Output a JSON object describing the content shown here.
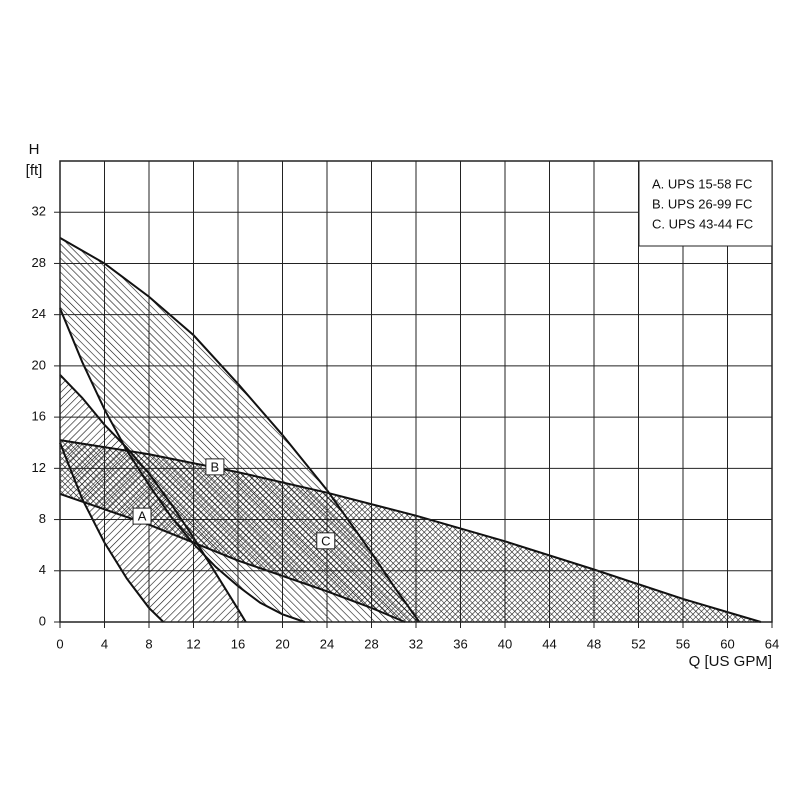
{
  "chart_data": {
    "type": "band",
    "y_label": [
      "H",
      "[ft]"
    ],
    "x_label": "Q [US GPM]",
    "xlim": [
      0,
      64
    ],
    "xticks": [
      0,
      4,
      8,
      12,
      16,
      20,
      24,
      28,
      32,
      36,
      40,
      44,
      48,
      52,
      56,
      60,
      64
    ],
    "ylim": [
      0,
      36
    ],
    "yticks": [
      0,
      4,
      8,
      12,
      16,
      20,
      24,
      28,
      32
    ],
    "grid": true,
    "legend": "upper right",
    "series": [
      {
        "name": "A. UPS 15-58 FC",
        "label": "A",
        "color": "#111111",
        "hatch": "/",
        "upper": {
          "x": [
            0,
            2,
            4,
            6,
            8,
            10,
            12,
            14,
            16,
            16.7
          ],
          "values": [
            19.3,
            17.5,
            15.4,
            13.6,
            11.6,
            9.2,
            6.6,
            3.8,
            1,
            0
          ]
        },
        "lower": {
          "x": [
            0,
            2,
            4,
            6,
            8,
            9.3
          ],
          "values": [
            14,
            9.6,
            6.2,
            3.4,
            1.1,
            0
          ]
        }
      },
      {
        "name": "B. UPS 26-99 FC",
        "label": "B",
        "color": "#111111",
        "hatch": "\\",
        "upper": {
          "x": [
            0,
            4,
            8,
            12,
            16,
            20,
            24,
            28,
            30,
            32.3
          ],
          "values": [
            30,
            28,
            25.4,
            22.4,
            18.6,
            14.6,
            10.3,
            5.4,
            2.8,
            0
          ]
        },
        "lower": {
          "x": [
            0,
            2,
            4,
            6,
            8,
            10,
            12,
            14,
            16,
            18,
            20,
            22
          ],
          "values": [
            24.5,
            20.3,
            16.6,
            13.4,
            10.7,
            8.2,
            6.1,
            4.3,
            2.8,
            1.5,
            0.6,
            0
          ]
        }
      },
      {
        "name": "C. UPS 43-44 FC",
        "label": "C",
        "color": "#111111",
        "hatch": "x",
        "upper": {
          "x": [
            0,
            8,
            16,
            24,
            32,
            40,
            48,
            56,
            63
          ],
          "values": [
            14.2,
            13.1,
            11.7,
            10.1,
            8.3,
            6.3,
            4.1,
            1.8,
            0
          ]
        },
        "lower": {
          "x": [
            0,
            4,
            8,
            12,
            16,
            20,
            24,
            28,
            31
          ],
          "values": [
            10,
            8.8,
            7.6,
            6.2,
            4.8,
            3.6,
            2.4,
            1.1,
            0
          ]
        }
      }
    ]
  }
}
